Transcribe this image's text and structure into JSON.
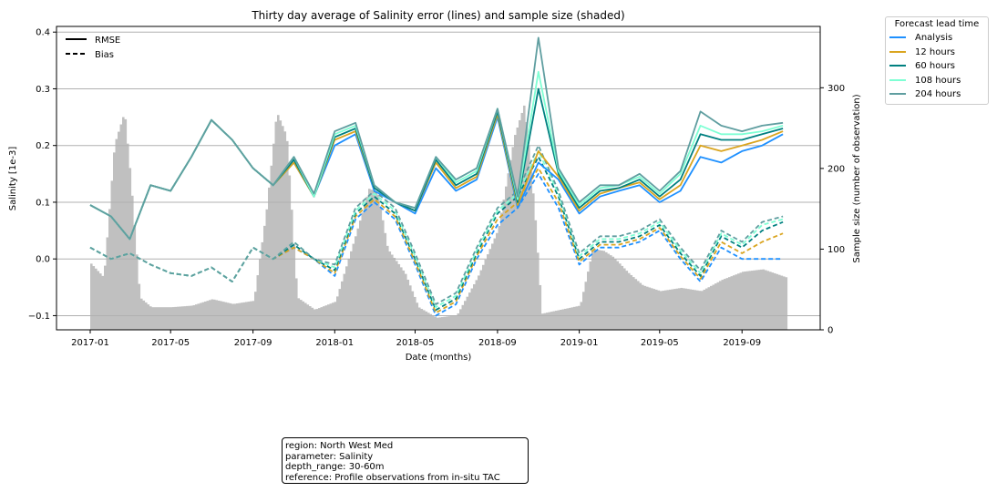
{
  "chart_data": {
    "type": "line",
    "title": "Thirty day average of Salinity error (lines) and sample size (shaded)",
    "xlabel": "Date (months)",
    "ylabel": "Salinity [1e-3]",
    "y2label": "Sample size (number of observation)",
    "xticks": [
      "2017-01",
      "2017-05",
      "2017-09",
      "2018-01",
      "2018-05",
      "2018-09",
      "2019-01",
      "2019-05",
      "2019-09"
    ],
    "yticks": [
      "−0.1",
      "0.0",
      "0.1",
      "0.2",
      "0.3",
      "0.4"
    ],
    "y2ticks": [
      "0",
      "100",
      "200",
      "300"
    ],
    "ylim": [
      -0.125,
      0.41
    ],
    "y2lim": [
      0,
      376
    ],
    "grid": true,
    "style_legend": {
      "entries": [
        {
          "label": "RMSE",
          "dash": "solid"
        },
        {
          "label": "Bias",
          "dash": "dashed"
        }
      ],
      "placement": "top-left"
    },
    "legend": {
      "title": "Forecast lead time",
      "placement": "outside-right",
      "entries": [
        {
          "name": "Analysis",
          "color": "#1e90ff"
        },
        {
          "name": "12 hours",
          "color": "#daa520"
        },
        {
          "name": "60 hours",
          "color": "#008080"
        },
        {
          "name": "108 hours",
          "color": "#7fffd4"
        },
        {
          "name": "204 hours",
          "color": "#5f9ea0"
        }
      ]
    },
    "sample_size": {
      "color": "#c0c0c0",
      "months": [
        "2017-01",
        "2017-01m",
        "2017-02",
        "2017-02m",
        "2017-03",
        "2017-03m",
        "2017-04",
        "2017-05",
        "2017-06",
        "2017-07",
        "2017-08",
        "2017-09",
        "2017-10",
        "2017-10m",
        "2017-11",
        "2017-11m",
        "2017-12",
        "2018-01",
        "2018-02",
        "2018-02m",
        "2018-03",
        "2018-03m",
        "2018-04",
        "2018-05",
        "2018-06",
        "2018-07",
        "2018-08",
        "2018-09",
        "2018-10",
        "2018-10m",
        "2018-11",
        "2018-12",
        "2019-01",
        "2019-02",
        "2019-02m",
        "2019-03",
        "2019-03m",
        "2019-04",
        "2019-05",
        "2019-06",
        "2019-07",
        "2019-08",
        "2019-09",
        "2019-10",
        "2019-11"
      ],
      "x": [
        "2017-01-01",
        "2017-01-20",
        "2017-02-05",
        "2017-02-20",
        "2017-03-01",
        "2017-03-15",
        "2017-04-01",
        "2017-05-01",
        "2017-06-01",
        "2017-07-01",
        "2017-08-01",
        "2017-09-01",
        "2017-09-20",
        "2017-10-05",
        "2017-10-20",
        "2017-11-05",
        "2017-12-01",
        "2018-01-01",
        "2018-02-01",
        "2018-02-20",
        "2018-03-05",
        "2018-03-20",
        "2018-04-15",
        "2018-05-05",
        "2018-06-01",
        "2018-07-01",
        "2018-08-01",
        "2018-09-01",
        "2018-09-25",
        "2018-10-10",
        "2018-10-25",
        "2018-11-05",
        "2019-01-01",
        "2019-01-20",
        "2019-02-05",
        "2019-02-20",
        "2019-03-15",
        "2019-04-05",
        "2019-05-01",
        "2019-06-01",
        "2019-07-01",
        "2019-08-01",
        "2019-09-01",
        "2019-10-01",
        "2019-11-05"
      ],
      "values": [
        82,
        65,
        230,
        270,
        190,
        40,
        28,
        28,
        30,
        38,
        32,
        36,
        150,
        270,
        240,
        40,
        25,
        35,
        120,
        175,
        170,
        100,
        70,
        28,
        15,
        18,
        65,
        125,
        240,
        280,
        150,
        20,
        30,
        100,
        98,
        90,
        70,
        55,
        48,
        52,
        48,
        62,
        72,
        75,
        65
      ]
    },
    "x": [
      "2017-01-01",
      "2017-02-01",
      "2017-03-01",
      "2017-04-01",
      "2017-05-01",
      "2017-06-01",
      "2017-07-01",
      "2017-08-01",
      "2017-09-01",
      "2017-10-01",
      "2017-11-01",
      "2017-12-01",
      "2018-01-01",
      "2018-02-01",
      "2018-03-01",
      "2018-04-01",
      "2018-05-01",
      "2018-06-01",
      "2018-07-01",
      "2018-08-01",
      "2018-09-01",
      "2018-10-01",
      "2018-11-01",
      "2018-12-01",
      "2019-01-01",
      "2019-02-01",
      "2019-03-01",
      "2019-04-01",
      "2019-05-01",
      "2019-06-01",
      "2019-07-01",
      "2019-08-01",
      "2019-09-01",
      "2019-10-01",
      "2019-11-01"
    ],
    "series": [
      {
        "name": "Analysis",
        "metric": "RMSE",
        "values": [
          0.095,
          0.075,
          0.035,
          0.13,
          0.12,
          0.18,
          0.245,
          0.21,
          0.16,
          0.13,
          0.17,
          0.11,
          0.2,
          0.22,
          0.12,
          0.1,
          0.08,
          0.16,
          0.12,
          0.14,
          0.25,
          0.09,
          0.17,
          0.14,
          0.08,
          0.11,
          0.12,
          0.13,
          0.1,
          0.12,
          0.18,
          0.17,
          0.19,
          0.2,
          0.22
        ]
      },
      {
        "name": "12 hours",
        "metric": "RMSE",
        "values": [
          0.095,
          0.075,
          0.035,
          0.13,
          0.12,
          0.18,
          0.245,
          0.21,
          0.16,
          0.13,
          0.17,
          0.11,
          0.21,
          0.225,
          0.125,
          0.1,
          0.085,
          0.17,
          0.125,
          0.145,
          0.255,
          0.095,
          0.19,
          0.145,
          0.085,
          0.115,
          0.125,
          0.135,
          0.105,
          0.13,
          0.2,
          0.19,
          0.2,
          0.21,
          0.225
        ]
      },
      {
        "name": "60 hours",
        "metric": "RMSE",
        "values": [
          0.095,
          0.075,
          0.035,
          0.13,
          0.12,
          0.18,
          0.245,
          0.21,
          0.16,
          0.13,
          0.175,
          0.11,
          0.215,
          0.23,
          0.125,
          0.1,
          0.085,
          0.175,
          0.13,
          0.15,
          0.26,
          0.1,
          0.3,
          0.15,
          0.09,
          0.12,
          0.125,
          0.14,
          0.11,
          0.14,
          0.22,
          0.21,
          0.21,
          0.22,
          0.23
        ]
      },
      {
        "name": "108 hours",
        "metric": "RMSE",
        "values": [
          0.095,
          0.075,
          0.035,
          0.13,
          0.12,
          0.18,
          0.245,
          0.21,
          0.16,
          0.13,
          0.18,
          0.11,
          0.22,
          0.235,
          0.13,
          0.1,
          0.09,
          0.18,
          0.135,
          0.155,
          0.265,
          0.105,
          0.33,
          0.155,
          0.095,
          0.125,
          0.13,
          0.145,
          0.115,
          0.15,
          0.235,
          0.22,
          0.22,
          0.225,
          0.235
        ]
      },
      {
        "name": "204 hours",
        "metric": "RMSE",
        "values": [
          0.095,
          0.075,
          0.035,
          0.13,
          0.12,
          0.18,
          0.245,
          0.21,
          0.16,
          0.13,
          0.18,
          0.115,
          0.225,
          0.24,
          0.13,
          0.1,
          0.09,
          0.18,
          0.14,
          0.16,
          0.265,
          0.11,
          0.39,
          0.16,
          0.1,
          0.13,
          0.13,
          0.15,
          0.12,
          0.155,
          0.26,
          0.235,
          0.225,
          0.235,
          0.24
        ]
      },
      {
        "name": "Analysis",
        "metric": "Bias",
        "values": [
          0.02,
          0.0,
          0.01,
          -0.01,
          -0.025,
          -0.03,
          -0.015,
          -0.04,
          0.02,
          0.0,
          0.02,
          0.0,
          -0.03,
          0.07,
          0.1,
          0.07,
          -0.01,
          -0.1,
          -0.08,
          0.0,
          0.06,
          0.09,
          0.15,
          0.09,
          -0.01,
          0.02,
          0.02,
          0.03,
          0.05,
          0.0,
          -0.04,
          0.02,
          0.0,
          0.0,
          0.0
        ]
      },
      {
        "name": "12 hours",
        "metric": "Bias",
        "values": [
          0.02,
          0.0,
          0.01,
          -0.01,
          -0.025,
          -0.03,
          -0.015,
          -0.04,
          0.02,
          0.0,
          0.02,
          0.0,
          -0.025,
          0.075,
          0.105,
          0.075,
          -0.005,
          -0.095,
          -0.075,
          0.005,
          0.07,
          0.1,
          0.16,
          0.1,
          -0.005,
          0.025,
          0.025,
          0.035,
          0.055,
          0.005,
          -0.035,
          0.03,
          0.01,
          0.03,
          0.045
        ]
      },
      {
        "name": "60 hours",
        "metric": "Bias",
        "values": [
          0.02,
          0.0,
          0.01,
          -0.01,
          -0.025,
          -0.03,
          -0.015,
          -0.04,
          0.02,
          0.0,
          0.025,
          0.0,
          -0.02,
          0.08,
          0.11,
          0.08,
          0.0,
          -0.09,
          -0.07,
          0.01,
          0.08,
          0.11,
          0.18,
          0.11,
          0.0,
          0.03,
          0.03,
          0.04,
          0.06,
          0.01,
          -0.03,
          0.04,
          0.02,
          0.05,
          0.065
        ]
      },
      {
        "name": "108 hours",
        "metric": "Bias",
        "values": [
          0.02,
          0.0,
          0.01,
          -0.01,
          -0.025,
          -0.03,
          -0.015,
          -0.04,
          0.02,
          0.0,
          0.03,
          0.0,
          -0.015,
          0.085,
          0.115,
          0.085,
          0.005,
          -0.085,
          -0.065,
          0.015,
          0.085,
          0.115,
          0.19,
          0.115,
          0.005,
          0.035,
          0.035,
          0.045,
          0.065,
          0.015,
          -0.025,
          0.045,
          0.025,
          0.06,
          0.07
        ]
      },
      {
        "name": "204 hours",
        "metric": "Bias",
        "values": [
          0.02,
          0.0,
          0.01,
          -0.01,
          -0.025,
          -0.03,
          -0.015,
          -0.04,
          0.02,
          0.0,
          0.03,
          0.0,
          -0.01,
          0.09,
          0.12,
          0.09,
          0.01,
          -0.08,
          -0.06,
          0.02,
          0.09,
          0.12,
          0.2,
          0.12,
          0.01,
          0.04,
          0.04,
          0.05,
          0.07,
          0.02,
          -0.02,
          0.05,
          0.03,
          0.065,
          0.075
        ]
      }
    ]
  },
  "info": {
    "region": "region: North West Med",
    "parameter": "parameter: Salinity",
    "depth_range": "depth_range: 30-60m",
    "reference": "reference: Profile observations from in-situ TAC"
  }
}
